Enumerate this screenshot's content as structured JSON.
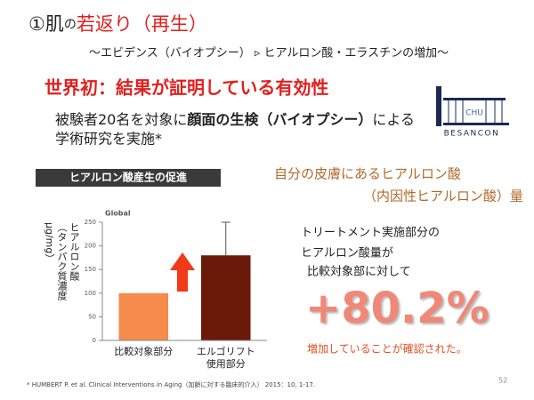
{
  "header": {
    "title_parts": [
      "①肌",
      "の",
      "若返り（再生）"
    ],
    "subtitle": "～エビデンス（バイオプシー） ▹ ヒアルロン酸・エラスチンの増加～"
  },
  "headline": "世界初：結果が証明している有効性",
  "body_parts": [
    "被験者20名を対象に",
    "顔面の生検（バイオプシー）",
    "による",
    "学術研究を実施*"
  ],
  "logo": {
    "mark": "CHU",
    "name": "BESANCON"
  },
  "chart_caption": "ヒアルロン酸産生の促進",
  "chart_data": {
    "type": "bar",
    "title": "Global",
    "y_label": "ヒアルロン酸\n（タンパク質濃度\nμg/mg）",
    "categories": [
      "比較対象部分",
      "エルゴリフト\n使用部分"
    ],
    "values": [
      100,
      180
    ],
    "errors": [
      null,
      70
    ],
    "colors": [
      "#f58b4c",
      "#6b1a0a"
    ],
    "ylim": [
      0,
      250
    ],
    "yticks": [
      0,
      50,
      100,
      150,
      200,
      250
    ]
  },
  "result": {
    "heading": [
      "自分の皮膚にあるヒアルロン酸",
      "（内因性ヒアルロン酸）量"
    ],
    "lines": [
      "トリートメント実施部分の",
      "ヒアルロン酸量が",
      "比較対象部に対して"
    ],
    "figure": "+80.2%",
    "conclusion": "増加していることが確認された。"
  },
  "footnote": "* HUMBERT P. et al. Clinical Interventions in Aging（加齢に対する臨床的介入） 2015：10, 1-17.",
  "page_number": 52
}
